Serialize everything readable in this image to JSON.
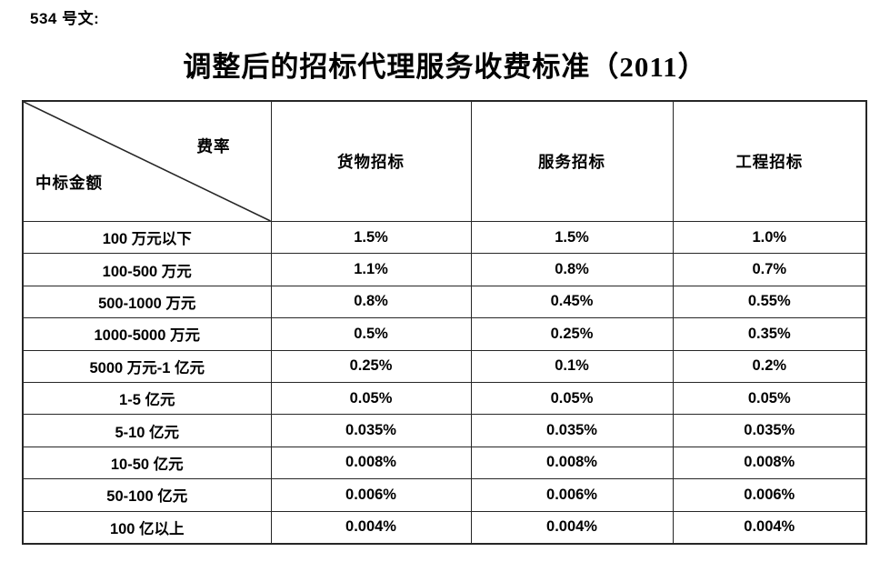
{
  "page": {
    "doc_label": "534 号文:",
    "title": "调整后的招标代理服务收费标准（2011）"
  },
  "table": {
    "corner": {
      "rate_label": "费率",
      "amount_label": "中标金额"
    },
    "columns": [
      {
        "id": "goods",
        "label": "货物招标"
      },
      {
        "id": "services",
        "label": "服务招标"
      },
      {
        "id": "engineering",
        "label": "工程招标"
      }
    ],
    "rows": [
      {
        "amount": "100 万元以下",
        "values": [
          "1.5%",
          "1.5%",
          "1.0%"
        ]
      },
      {
        "amount": "100-500 万元",
        "values": [
          "1.1%",
          "0.8%",
          "0.7%"
        ]
      },
      {
        "amount": "500-1000 万元",
        "values": [
          "0.8%",
          "0.45%",
          "0.55%"
        ]
      },
      {
        "amount": "1000-5000 万元",
        "values": [
          "0.5%",
          "0.25%",
          "0.35%"
        ]
      },
      {
        "amount": "5000 万元-1 亿元",
        "values": [
          "0.25%",
          "0.1%",
          "0.2%"
        ]
      },
      {
        "amount": "1-5 亿元",
        "values": [
          "0.05%",
          "0.05%",
          "0.05%"
        ]
      },
      {
        "amount": "5-10 亿元",
        "values": [
          "0.035%",
          "0.035%",
          "0.035%"
        ]
      },
      {
        "amount": "10-50 亿元",
        "values": [
          "0.008%",
          "0.008%",
          "0.008%"
        ]
      },
      {
        "amount": "50-100 亿元",
        "values": [
          "0.006%",
          "0.006%",
          "0.006%"
        ]
      },
      {
        "amount": "100 亿以上",
        "values": [
          "0.004%",
          "0.004%",
          "0.004%"
        ]
      }
    ]
  },
  "colors": {
    "text": "#000000",
    "border": "#262626",
    "background": "#ffffff"
  }
}
